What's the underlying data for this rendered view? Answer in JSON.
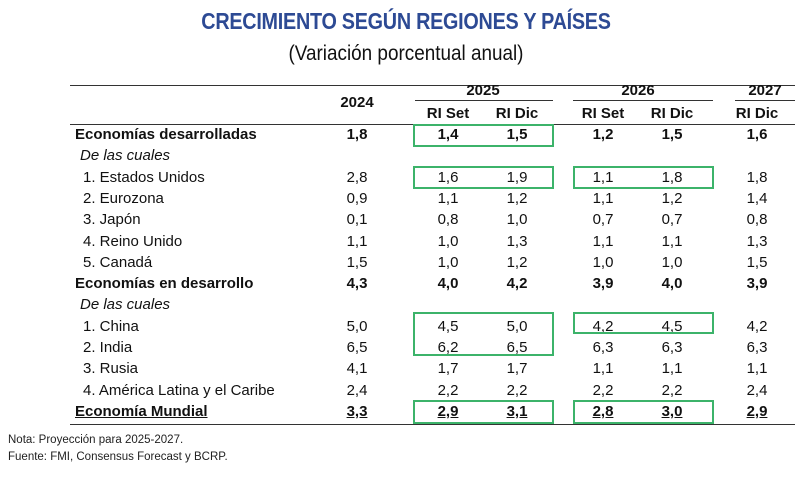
{
  "title": "CRECIMIENTO SEGÚN REGIONES Y PAÍSES",
  "subtitle": "(Variación porcentual anual)",
  "header": {
    "years": [
      "2024",
      "2025",
      "2026",
      "2027"
    ],
    "subcolumns": [
      "RI Set",
      "RI Dic",
      "RI Set",
      "RI Dic",
      "RI Dic"
    ]
  },
  "highlight_color": "#3cb36a",
  "rows": [
    {
      "label": "Economías desarrolladas",
      "style": "bold",
      "values": [
        "1,8",
        "1,4",
        "1,5",
        "1,2",
        "1,5",
        "1,6"
      ]
    },
    {
      "label": "De las cuales",
      "style": "italic",
      "values": []
    },
    {
      "label": "1. Estados Unidos",
      "style": "indent",
      "values": [
        "2,8",
        "1,6",
        "1,9",
        "1,1",
        "1,8",
        "1,8"
      ]
    },
    {
      "label": "2. Eurozona",
      "style": "indent",
      "values": [
        "0,9",
        "1,1",
        "1,2",
        "1,1",
        "1,2",
        "1,4"
      ]
    },
    {
      "label": "3. Japón",
      "style": "indent",
      "values": [
        "0,1",
        "0,8",
        "1,0",
        "0,7",
        "0,7",
        "0,8"
      ]
    },
    {
      "label": "4. Reino Unido",
      "style": "indent",
      "values": [
        "1,1",
        "1,0",
        "1,3",
        "1,1",
        "1,1",
        "1,3"
      ]
    },
    {
      "label": "5. Canadá",
      "style": "indent",
      "values": [
        "1,5",
        "1,0",
        "1,2",
        "1,0",
        "1,0",
        "1,5"
      ]
    },
    {
      "label": "Economías en desarrollo",
      "style": "bold",
      "values": [
        "4,3",
        "4,0",
        "4,2",
        "3,9",
        "4,0",
        "3,9"
      ]
    },
    {
      "label": "De las cuales",
      "style": "italic",
      "values": []
    },
    {
      "label": "1. China",
      "style": "indent",
      "values": [
        "5,0",
        "4,5",
        "5,0",
        "4,2",
        "4,5",
        "4,2"
      ]
    },
    {
      "label": "2. India",
      "style": "indent",
      "values": [
        "6,5",
        "6,2",
        "6,5",
        "6,3",
        "6,3",
        "6,3"
      ]
    },
    {
      "label": "3. Rusia",
      "style": "indent",
      "values": [
        "4,1",
        "1,7",
        "1,7",
        "1,1",
        "1,1",
        "1,1"
      ]
    },
    {
      "label": "4. América Latina y el Caribe",
      "style": "indent",
      "values": [
        "2,4",
        "2,2",
        "2,2",
        "2,2",
        "2,2",
        "2,4"
      ]
    },
    {
      "label": "Economía Mundial",
      "style": "total",
      "values": [
        "3,3",
        "2,9",
        "3,1",
        "2,8",
        "3,0",
        "2,9"
      ]
    }
  ],
  "notes": [
    "Nota: Proyección para 2025-2027.",
    "Fuente:  FMI, Consensus Forecast y BCRP."
  ]
}
